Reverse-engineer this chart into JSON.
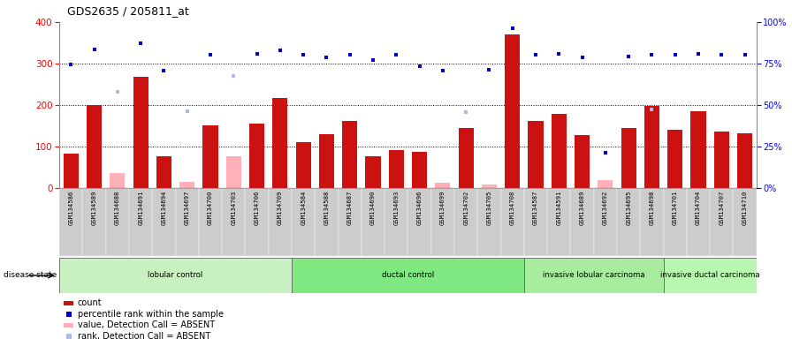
{
  "title": "GDS2635 / 205811_at",
  "samples": [
    "GSM134586",
    "GSM134589",
    "GSM134688",
    "GSM134691",
    "GSM134694",
    "GSM134697",
    "GSM134700",
    "GSM134703",
    "GSM134706",
    "GSM134709",
    "GSM134584",
    "GSM134588",
    "GSM134687",
    "GSM134690",
    "GSM134693",
    "GSM134696",
    "GSM134699",
    "GSM134702",
    "GSM134705",
    "GSM134708",
    "GSM134587",
    "GSM134591",
    "GSM134689",
    "GSM134692",
    "GSM134695",
    "GSM134698",
    "GSM134701",
    "GSM134704",
    "GSM134707",
    "GSM134710"
  ],
  "count_present": [
    83,
    201,
    null,
    268,
    77,
    null,
    151,
    null,
    155,
    218,
    110,
    130,
    161,
    77,
    91,
    87,
    null,
    145,
    null,
    370,
    161,
    178,
    127,
    null,
    144,
    197,
    141,
    186,
    136,
    133
  ],
  "count_absent": [
    null,
    null,
    37,
    null,
    null,
    15,
    null,
    77,
    null,
    null,
    null,
    null,
    null,
    null,
    null,
    null,
    12,
    null,
    8,
    null,
    null,
    null,
    null,
    20,
    null,
    null,
    null,
    null,
    null,
    null
  ],
  "rank_present": [
    298,
    335,
    null,
    348,
    283,
    null,
    321,
    null,
    323,
    332,
    322,
    315,
    321,
    308,
    321,
    293,
    284,
    null,
    285,
    385,
    321,
    323,
    315,
    85,
    316,
    322,
    322,
    324,
    322,
    322
  ],
  "rank_absent": [
    null,
    null,
    233,
    null,
    null,
    186,
    null,
    270,
    null,
    null,
    null,
    null,
    null,
    null,
    null,
    null,
    null,
    183,
    null,
    null,
    null,
    null,
    null,
    null,
    null,
    190,
    null,
    null,
    null,
    null
  ],
  "groups": [
    {
      "label": "lobular control",
      "start": 0,
      "end": 10,
      "color": "#c8f0c0"
    },
    {
      "label": "ductal control",
      "start": 10,
      "end": 20,
      "color": "#80e880"
    },
    {
      "label": "invasive lobular carcinoma",
      "start": 20,
      "end": 26,
      "color": "#a8eca0"
    },
    {
      "label": "invasive ductal carcinoma",
      "start": 26,
      "end": 30,
      "color": "#b8f8b0"
    }
  ],
  "bar_color_present": "#cc1111",
  "bar_color_absent": "#ffb0b8",
  "dot_color_present": "#0000cc",
  "dot_color_absent": "#b0b8e8",
  "yticks_left": [
    0,
    100,
    200,
    300,
    400
  ],
  "yticks_right": [
    0,
    25,
    50,
    75,
    100
  ],
  "grid_lines": [
    100,
    200,
    300
  ],
  "legend_items": [
    {
      "label": "count",
      "color": "#cc1111",
      "type": "bar"
    },
    {
      "label": "percentile rank within the sample",
      "color": "#0000cc",
      "type": "dot"
    },
    {
      "label": "value, Detection Call = ABSENT",
      "color": "#ffb0b8",
      "type": "bar"
    },
    {
      "label": "rank, Detection Call = ABSENT",
      "color": "#b0b8e8",
      "type": "dot"
    }
  ]
}
